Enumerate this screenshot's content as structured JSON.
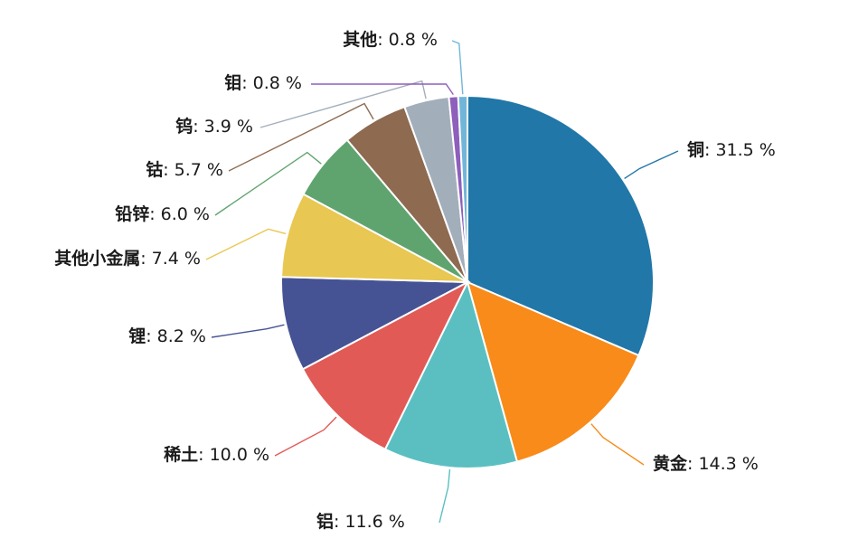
{
  "chart_data": {
    "type": "pie",
    "title": "",
    "unit": "%",
    "start_angle_deg": 0,
    "direction": "clockwise",
    "slices": [
      {
        "name": "铜",
        "value": 31.5,
        "color": "#2177a8",
        "label_side": "right"
      },
      {
        "name": "黄金",
        "value": 14.3,
        "color": "#f88b19",
        "label_side": "right"
      },
      {
        "name": "铝",
        "value": 11.6,
        "color": "#5bbfc2",
        "label_side": "bottom"
      },
      {
        "name": "稀土",
        "value": 10.0,
        "color": "#e15a56",
        "label_side": "left"
      },
      {
        "name": "锂",
        "value": 8.2,
        "color": "#455394",
        "label_side": "left"
      },
      {
        "name": "其他小金属",
        "value": 7.4,
        "color": "#e8c752",
        "label_side": "left"
      },
      {
        "name": "铅锌",
        "value": 6.0,
        "color": "#5fa46f",
        "label_side": "left"
      },
      {
        "name": "钴",
        "value": 5.7,
        "color": "#8d6a50",
        "label_side": "left"
      },
      {
        "name": "钨",
        "value": 3.9,
        "color": "#a3aebb",
        "label_side": "left"
      },
      {
        "name": "钼",
        "value": 0.8,
        "color": "#8e5fbb",
        "label_side": "left"
      },
      {
        "name": "其他",
        "value": 0.8,
        "color": "#71b6d9",
        "label_side": "left"
      }
    ]
  }
}
